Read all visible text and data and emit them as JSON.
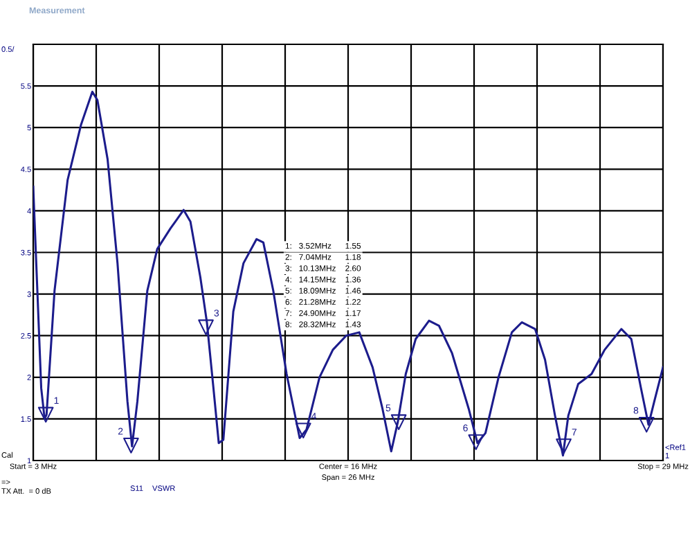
{
  "chart_data": {
    "type": "line",
    "title": "Measurement",
    "xlim": [
      3,
      29
    ],
    "xticks": [
      {
        "value": 3,
        "label": "Start = 3 MHz"
      },
      {
        "value": 5.6,
        "label": null
      },
      {
        "value": 8.2,
        "label": null
      },
      {
        "value": 10.8,
        "label": null
      },
      {
        "value": 13.4,
        "label": null
      },
      {
        "value": 16,
        "label": "Center = 16 MHz"
      },
      {
        "value": 18.6,
        "label": null
      },
      {
        "value": 21.2,
        "label": null
      },
      {
        "value": 23.8,
        "label": null
      },
      {
        "value": 26.4,
        "label": null
      },
      {
        "value": 29,
        "label": "Stop = 29 MHz"
      }
    ],
    "ylim": [
      1,
      6
    ],
    "yticks": [
      1,
      1.5,
      2,
      2.5,
      3,
      3.5,
      4,
      4.5,
      5,
      5.5
    ],
    "grid": true,
    "series": [
      {
        "color": "#1c1c8c",
        "x": [
          3.0,
          3.33,
          3.47,
          3.55,
          3.88,
          4.42,
          4.97,
          5.44,
          5.65,
          6.07,
          6.48,
          6.89,
          7.08,
          7.3,
          7.71,
          8.12,
          8.67,
          9.21,
          9.49,
          9.9,
          10.17,
          10.44,
          10.66,
          10.85,
          11.26,
          11.68,
          12.22,
          12.5,
          12.91,
          13.46,
          14.0,
          14.28,
          14.82,
          15.37,
          15.92,
          16.46,
          17.01,
          17.42,
          17.78,
          18.05,
          18.38,
          18.79,
          19.34,
          19.75,
          20.29,
          20.98,
          21.34,
          21.67,
          22.21,
          22.76,
          23.17,
          23.72,
          24.13,
          24.54,
          24.87,
          25.09,
          25.5,
          26.05,
          26.59,
          27.28,
          27.69,
          28.09,
          28.4,
          28.64,
          29.0
        ],
        "values": [
          4.29,
          1.87,
          1.5,
          1.55,
          3.04,
          4.37,
          5.03,
          5.43,
          5.33,
          4.62,
          3.37,
          1.71,
          1.17,
          1.71,
          3.04,
          3.54,
          3.79,
          4.01,
          3.87,
          3.2,
          2.66,
          1.87,
          1.21,
          1.25,
          2.79,
          3.37,
          3.66,
          3.62,
          3.04,
          2.04,
          1.27,
          1.37,
          2.0,
          2.33,
          2.5,
          2.54,
          2.12,
          1.62,
          1.11,
          1.46,
          2.04,
          2.46,
          2.68,
          2.62,
          2.29,
          1.62,
          1.21,
          1.33,
          2.0,
          2.54,
          2.66,
          2.58,
          2.21,
          1.54,
          1.06,
          1.54,
          1.92,
          2.04,
          2.33,
          2.58,
          2.46,
          1.87,
          1.43,
          1.71,
          2.12
        ]
      },
      {
        "type": "scatter",
        "marker": "triangle",
        "color": "#1c1c8c",
        "x": [
          3.52,
          7.04,
          10.13,
          14.15,
          18.09,
          21.28,
          24.9,
          28.32
        ],
        "values": [
          1.55,
          1.18,
          2.6,
          1.36,
          1.46,
          1.22,
          1.17,
          1.43
        ]
      }
    ],
    "annotations": [
      {
        "text": "1",
        "x": 3.52,
        "y": 1.55
      },
      {
        "text": "2",
        "x": 7.04,
        "y": 1.18
      },
      {
        "text": "3",
        "x": 10.13,
        "y": 2.6
      },
      {
        "text": "4",
        "x": 14.15,
        "y": 1.36
      },
      {
        "text": "5",
        "x": 18.09,
        "y": 1.46
      },
      {
        "text": "6",
        "x": 21.28,
        "y": 1.22
      },
      {
        "text": "7",
        "x": 24.9,
        "y": 1.17
      },
      {
        "text": "8",
        "x": 28.32,
        "y": 1.43
      },
      "1:   3.52MHz      1.55",
      "2:   7.04MHz      1.18",
      "3:   10.13MHz    2.60",
      "4:   14.15MHz    1.36",
      "5:   18.09MHz    1.46",
      "6:   21.28MHz    1.22",
      "7:   24.90MHz    1.17",
      "8:   28.32MHz    1.43",
      "0.5/",
      "Cal",
      "Span = 26 MHz",
      "<Ref1\n1",
      "=>",
      "TX Att.  = 0 dB",
      "S11",
      "VSWR"
    ]
  }
}
